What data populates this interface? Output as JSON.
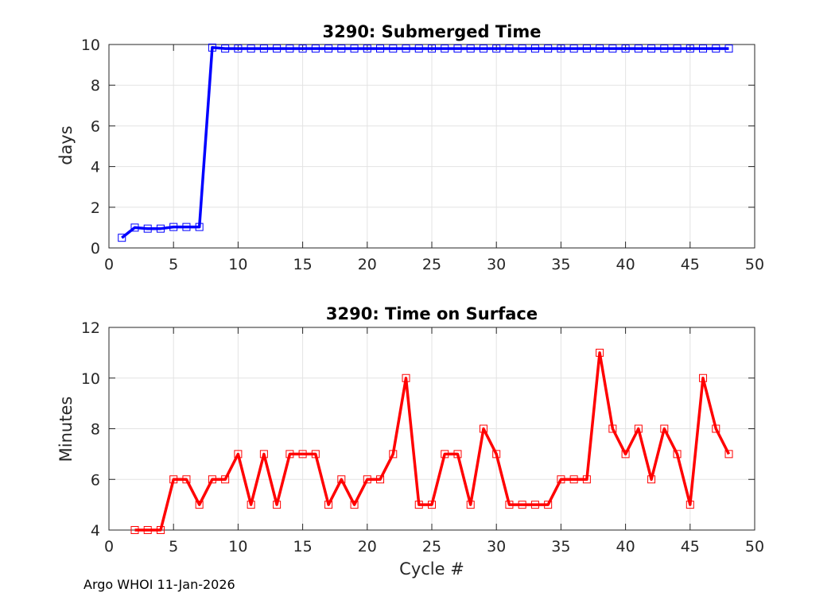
{
  "footer": "Argo WHOI 11-Jan-2026",
  "chart_data": [
    {
      "type": "line",
      "title": "3290: Submerged Time",
      "xlabel": "",
      "ylabel": "days",
      "xlim": [
        0,
        50
      ],
      "ylim": [
        0,
        10
      ],
      "xticks": [
        0,
        5,
        10,
        15,
        20,
        25,
        30,
        35,
        40,
        45,
        50
      ],
      "yticks": [
        0,
        2,
        4,
        6,
        8,
        10
      ],
      "grid": true,
      "color": "#0000ff",
      "series": [
        {
          "name": "Submerged Time",
          "x": [
            1,
            2,
            3,
            4,
            5,
            6,
            7,
            8,
            9,
            10,
            11,
            12,
            13,
            14,
            15,
            16,
            17,
            18,
            19,
            20,
            21,
            22,
            23,
            24,
            25,
            26,
            27,
            28,
            29,
            30,
            31,
            32,
            33,
            34,
            35,
            36,
            37,
            38,
            39,
            40,
            41,
            42,
            43,
            44,
            45,
            46,
            47,
            48
          ],
          "y": [
            0.5,
            1.0,
            0.95,
            0.95,
            1.03,
            1.03,
            1.03,
            9.85,
            9.8,
            9.8,
            9.8,
            9.8,
            9.8,
            9.8,
            9.8,
            9.8,
            9.8,
            9.8,
            9.8,
            9.8,
            9.8,
            9.8,
            9.8,
            9.8,
            9.8,
            9.8,
            9.8,
            9.8,
            9.8,
            9.8,
            9.8,
            9.8,
            9.8,
            9.8,
            9.8,
            9.8,
            9.8,
            9.8,
            9.8,
            9.8,
            9.8,
            9.8,
            9.8,
            9.8,
            9.8,
            9.8,
            9.8,
            9.8
          ]
        }
      ]
    },
    {
      "type": "line",
      "title": "3290: Time on Surface",
      "xlabel": "Cycle #",
      "ylabel": "Minutes",
      "xlim": [
        0,
        50
      ],
      "ylim": [
        4,
        12
      ],
      "xticks": [
        0,
        5,
        10,
        15,
        20,
        25,
        30,
        35,
        40,
        45,
        50
      ],
      "yticks": [
        4,
        6,
        8,
        10,
        12
      ],
      "grid": true,
      "color": "#ff0000",
      "series": [
        {
          "name": "Time on Surface",
          "x": [
            2,
            3,
            4,
            5,
            6,
            7,
            8,
            9,
            10,
            11,
            12,
            13,
            14,
            15,
            16,
            17,
            18,
            19,
            20,
            21,
            22,
            23,
            24,
            25,
            26,
            27,
            28,
            29,
            30,
            31,
            32,
            33,
            34,
            35,
            36,
            37,
            38,
            39,
            40,
            41,
            42,
            43,
            44,
            45,
            46,
            47,
            48
          ],
          "y": [
            4,
            4,
            4,
            6,
            6,
            5,
            6,
            6,
            7,
            5,
            7,
            5,
            7,
            7,
            7,
            5,
            6,
            5,
            6,
            6,
            7,
            10,
            5,
            5,
            7,
            7,
            5,
            8,
            7,
            5,
            5,
            5,
            5,
            6,
            6,
            6,
            11,
            8,
            7,
            8,
            6,
            8,
            7,
            5,
            10,
            8,
            7
          ]
        }
      ]
    }
  ]
}
